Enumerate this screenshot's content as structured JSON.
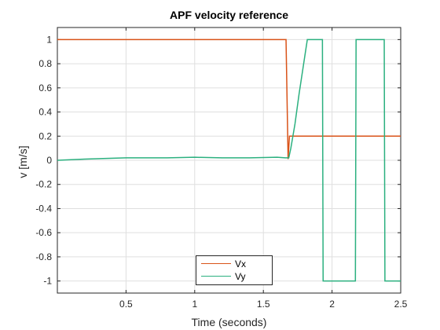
{
  "chart_data": {
    "type": "line",
    "title": "APF velocity reference",
    "xlabel": "Time (seconds)",
    "ylabel": "v [m/s]",
    "xlim": [
      0,
      2.5
    ],
    "ylim": [
      -1.1,
      1.1
    ],
    "grid": true,
    "box": true,
    "legend_position": "bottom-center",
    "x_ticks": [
      0.5,
      1,
      1.5,
      2,
      2.5
    ],
    "x_tick_labels": [
      "0.5",
      "1",
      "1.5",
      "2",
      "2.5"
    ],
    "y_ticks": [
      1,
      0.8,
      0.6,
      0.4,
      0.2,
      0,
      -0.2,
      -0.4,
      -0.6,
      -0.8,
      -1
    ],
    "y_tick_labels": [
      "1",
      "0.8",
      "0.6",
      "0.4",
      "0.2",
      "0",
      "-0.2",
      "-0.4",
      "-0.6",
      "-0.8",
      "-1"
    ],
    "series": [
      {
        "name": "Vx",
        "color": "#D95319",
        "x": [
          0,
          1.63,
          1.665,
          1.68,
          1.69,
          2.5
        ],
        "y": [
          1,
          1,
          1,
          0.01,
          0.2,
          0.2
        ]
      },
      {
        "name": "Vy",
        "color": "#2BB07F",
        "x": [
          0,
          0.2,
          0.5,
          0.8,
          1.0,
          1.2,
          1.4,
          1.6,
          1.66,
          1.685,
          1.7,
          1.73,
          1.76,
          1.8,
          1.82,
          1.93,
          1.935,
          2.17,
          2.175,
          2.38,
          2.385,
          2.5
        ],
        "y": [
          0,
          0.01,
          0.02,
          0.02,
          0.025,
          0.02,
          0.02,
          0.025,
          0.02,
          0.02,
          0.1,
          0.3,
          0.55,
          0.85,
          1,
          1,
          -1,
          -1,
          1,
          1,
          -1,
          -1
        ]
      }
    ]
  }
}
